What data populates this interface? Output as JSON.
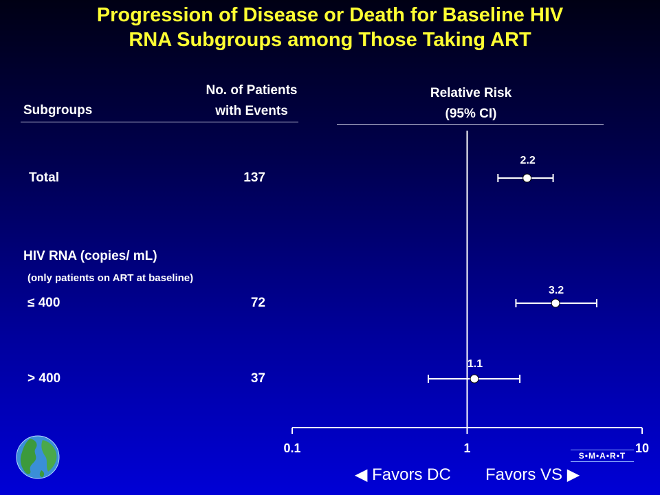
{
  "title_line1": "Progression of Disease or Death for Baseline HIV",
  "title_line2": "RNA Subgroups among Those Taking ART",
  "headers": {
    "subgroups": "Subgroups",
    "patients_line1": "No. of Patients",
    "patients_line2": "with Events",
    "risk_line1": "Relative Risk",
    "risk_line2": "(95% CI)"
  },
  "section_label": "HIV RNA (copies/ mL)",
  "section_note": "(only patients on ART at baseline)",
  "favors_left": "Favors DC",
  "favors_right": "Favors VS",
  "logo_text": "S•M•A•R•T",
  "colors": {
    "title": "#ffff33",
    "text": "#ffffff",
    "marker": "#ffffff"
  },
  "chart_data": {
    "type": "forest",
    "x_scale": "log",
    "xlim": [
      0.1,
      10
    ],
    "reference_line": 1,
    "x_ticks": [
      "0.1",
      "1",
      "10"
    ],
    "rows": [
      {
        "label": "Total",
        "events": "137",
        "rr": 2.2,
        "ci_low": 1.5,
        "ci_high": 3.1,
        "rr_label": "2.2"
      },
      {
        "label": "≤ 400",
        "events": "72",
        "rr": 3.2,
        "ci_low": 1.9,
        "ci_high": 5.5,
        "rr_label": "3.2"
      },
      {
        "label": "> 400",
        "events": "37",
        "rr": 1.1,
        "ci_low": 0.6,
        "ci_high": 2.0,
        "rr_label": "1.1"
      }
    ]
  }
}
